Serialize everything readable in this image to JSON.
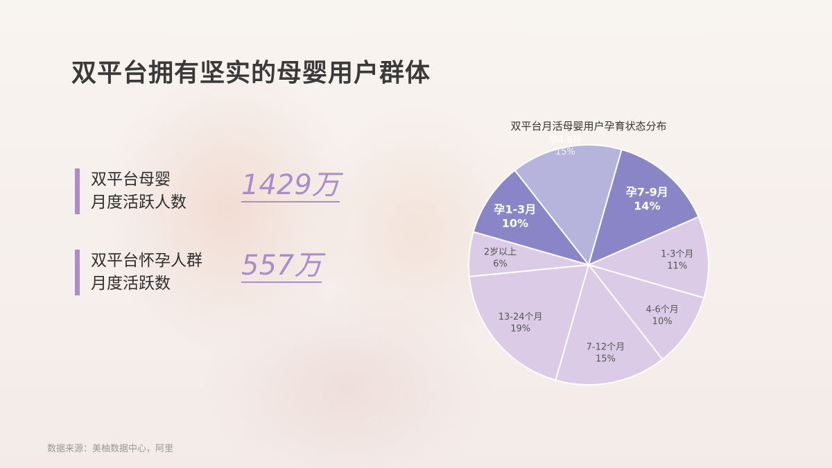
{
  "title": "双平台拥有坚实的母婴用户群体",
  "stats": [
    {
      "label_line1": "双平台母婴",
      "label_line2": "月度活跃人数",
      "value": "1429万"
    },
    {
      "label_line1": "双平台怀孕人群",
      "label_line2": "月度活跃数",
      "value": "557万"
    }
  ],
  "source": "数据来源：美柚数据中心，阿里",
  "accent_color": "#a98cc9",
  "chart_data": {
    "type": "pie",
    "title": "双平台月活母婴用户孕育状态分布",
    "categories": [
      "孕4-6月",
      "孕7-9月",
      "1-3个月",
      "4-6个月",
      "7-12个月",
      "13-24个月",
      "2岁以上",
      "孕1-3月"
    ],
    "values": [
      15,
      14,
      11,
      10,
      15,
      19,
      6,
      10
    ],
    "labels": [
      "15%",
      "14%",
      "11%",
      "10%",
      "15%",
      "19%",
      "6%",
      "10%"
    ],
    "colors": [
      "#b6b3dc",
      "#8a85c7",
      "#dccbe7",
      "#dccbe7",
      "#dccbe7",
      "#dccbe7",
      "#dccbe7",
      "#8a85c7"
    ]
  }
}
